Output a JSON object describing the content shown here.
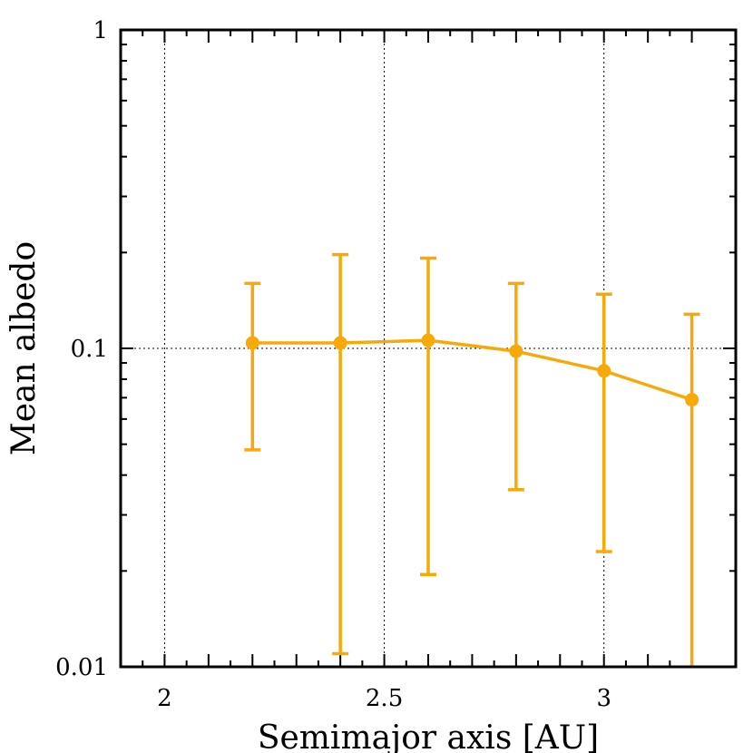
{
  "chart_data": {
    "type": "line",
    "title": "",
    "xlabel": "Semimajor axis [AU]",
    "ylabel": "Mean albedo",
    "xlim": [
      1.9,
      3.3
    ],
    "ylim": [
      0.01,
      1
    ],
    "yscale": "log",
    "grid": true,
    "x_ticks": [
      {
        "value": 2,
        "label": "2"
      },
      {
        "value": 2.5,
        "label": "2.5"
      },
      {
        "value": 3,
        "label": "3"
      }
    ],
    "y_ticks": [
      {
        "value": 0.01,
        "label": "0.01"
      },
      {
        "value": 0.1,
        "label": "0.1"
      },
      {
        "value": 1,
        "label": "1"
      }
    ],
    "series": [
      {
        "name": "Mean albedo",
        "color": "#f7a90a",
        "points": [
          {
            "x": 2.2,
            "y": 0.104,
            "y_low": 0.048,
            "y_high": 0.16
          },
          {
            "x": 2.4,
            "y": 0.104,
            "y_low": 0.011,
            "y_high": 0.197
          },
          {
            "x": 2.6,
            "y": 0.106,
            "y_low": 0.0195,
            "y_high": 0.192
          },
          {
            "x": 2.8,
            "y": 0.098,
            "y_low": 0.036,
            "y_high": 0.16
          },
          {
            "x": 3.0,
            "y": 0.085,
            "y_low": 0.023,
            "y_high": 0.148
          },
          {
            "x": 3.2,
            "y": 0.069,
            "y_low": 0.01,
            "y_high": 0.128
          }
        ]
      }
    ]
  }
}
